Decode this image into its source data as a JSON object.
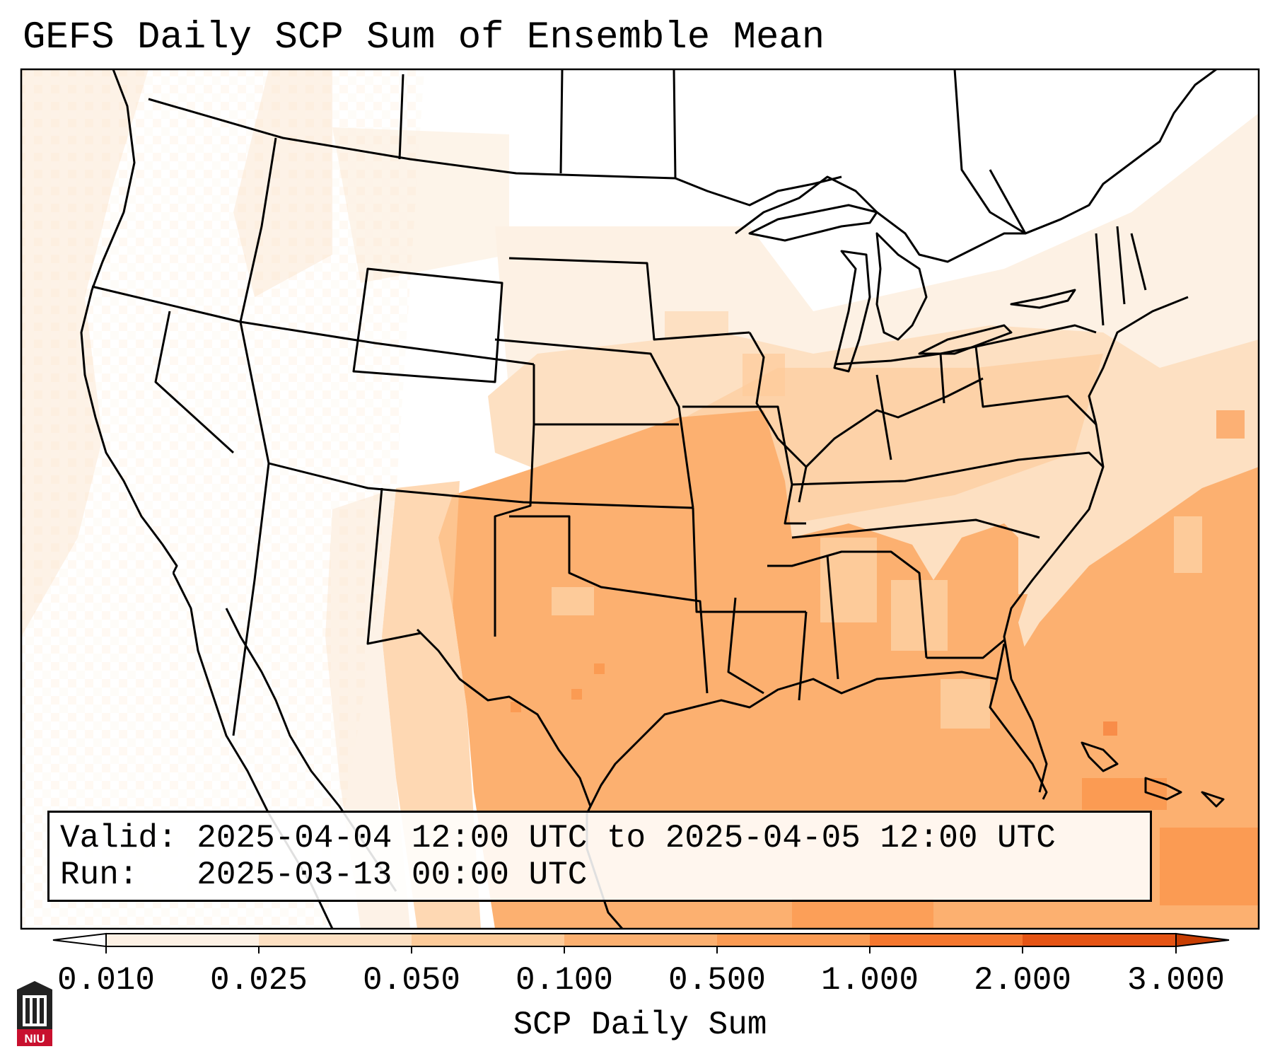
{
  "title": "GEFS Daily SCP Sum of Ensemble Mean",
  "info": {
    "valid_label": "Valid:",
    "valid_value": "2025-04-04 12:00 UTC to 2025-04-05 12:00 UTC",
    "run_label": "Run:",
    "run_value": "2025-03-13 00:00 UTC"
  },
  "colorbar": {
    "title": "SCP Daily Sum",
    "ticks": [
      "0.010",
      "0.025",
      "0.050",
      "0.100",
      "0.500",
      "1.000",
      "2.000",
      "3.000"
    ],
    "colors": [
      "#fdf1e4",
      "#fde0c2",
      "#fdcb9a",
      "#fcb070",
      "#fb9b53",
      "#f5772e",
      "#e55414"
    ],
    "under_color": "#ffffff",
    "over_color": "#c73d02"
  },
  "logo": {
    "text": "NIU",
    "colors": [
      "#c8102e",
      "#222222"
    ]
  }
}
